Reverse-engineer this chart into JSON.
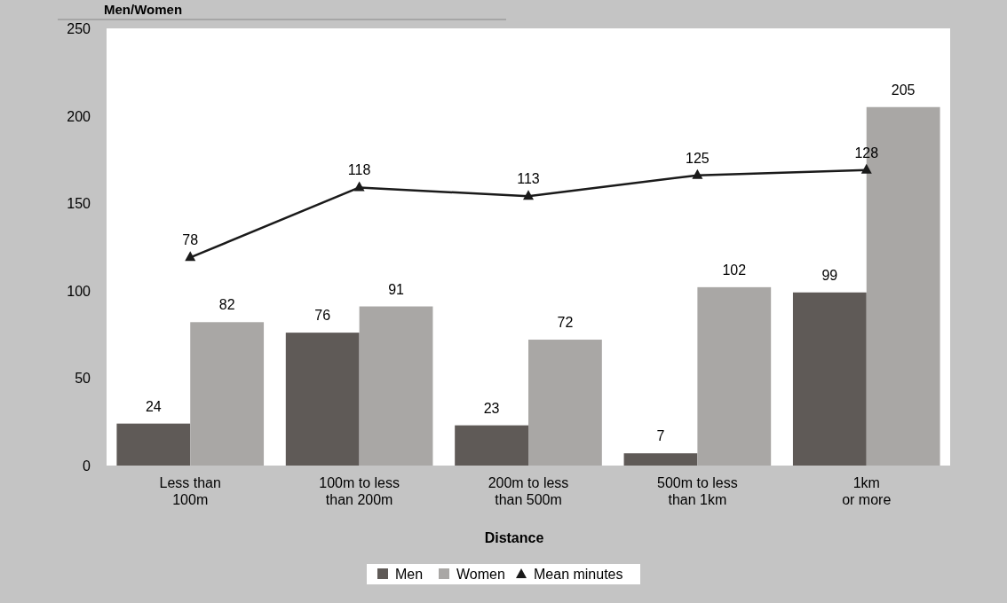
{
  "chart_data": {
    "type": "bar",
    "ylabel": "Men/Women",
    "xlabel": "Distance",
    "categories": [
      "Less than\n100m",
      "100m to less\nthan 200m",
      "200m to less\nthan 500m",
      "500m to less\nthan 1km",
      "1km\nor more"
    ],
    "series": [
      {
        "name": "Men",
        "color": "#5f5a57",
        "values": [
          24,
          76,
          23,
          7,
          99
        ]
      },
      {
        "name": "Women",
        "color": "#a9a7a5",
        "values": [
          82,
          91,
          72,
          102,
          205
        ]
      },
      {
        "name": "Mean minutes",
        "type": "line",
        "axis": "y2",
        "color": "#1a1a1a",
        "marker": "triangle",
        "values": [
          78,
          118,
          113,
          125,
          128
        ]
      }
    ],
    "ylim": [
      0,
      250
    ],
    "yticks": [
      0,
      50,
      100,
      150,
      200,
      250
    ],
    "y2lim": [
      -41,
      209
    ],
    "tick_labels": "y",
    "data_labels": true,
    "grid": false,
    "legend": "bottom"
  }
}
